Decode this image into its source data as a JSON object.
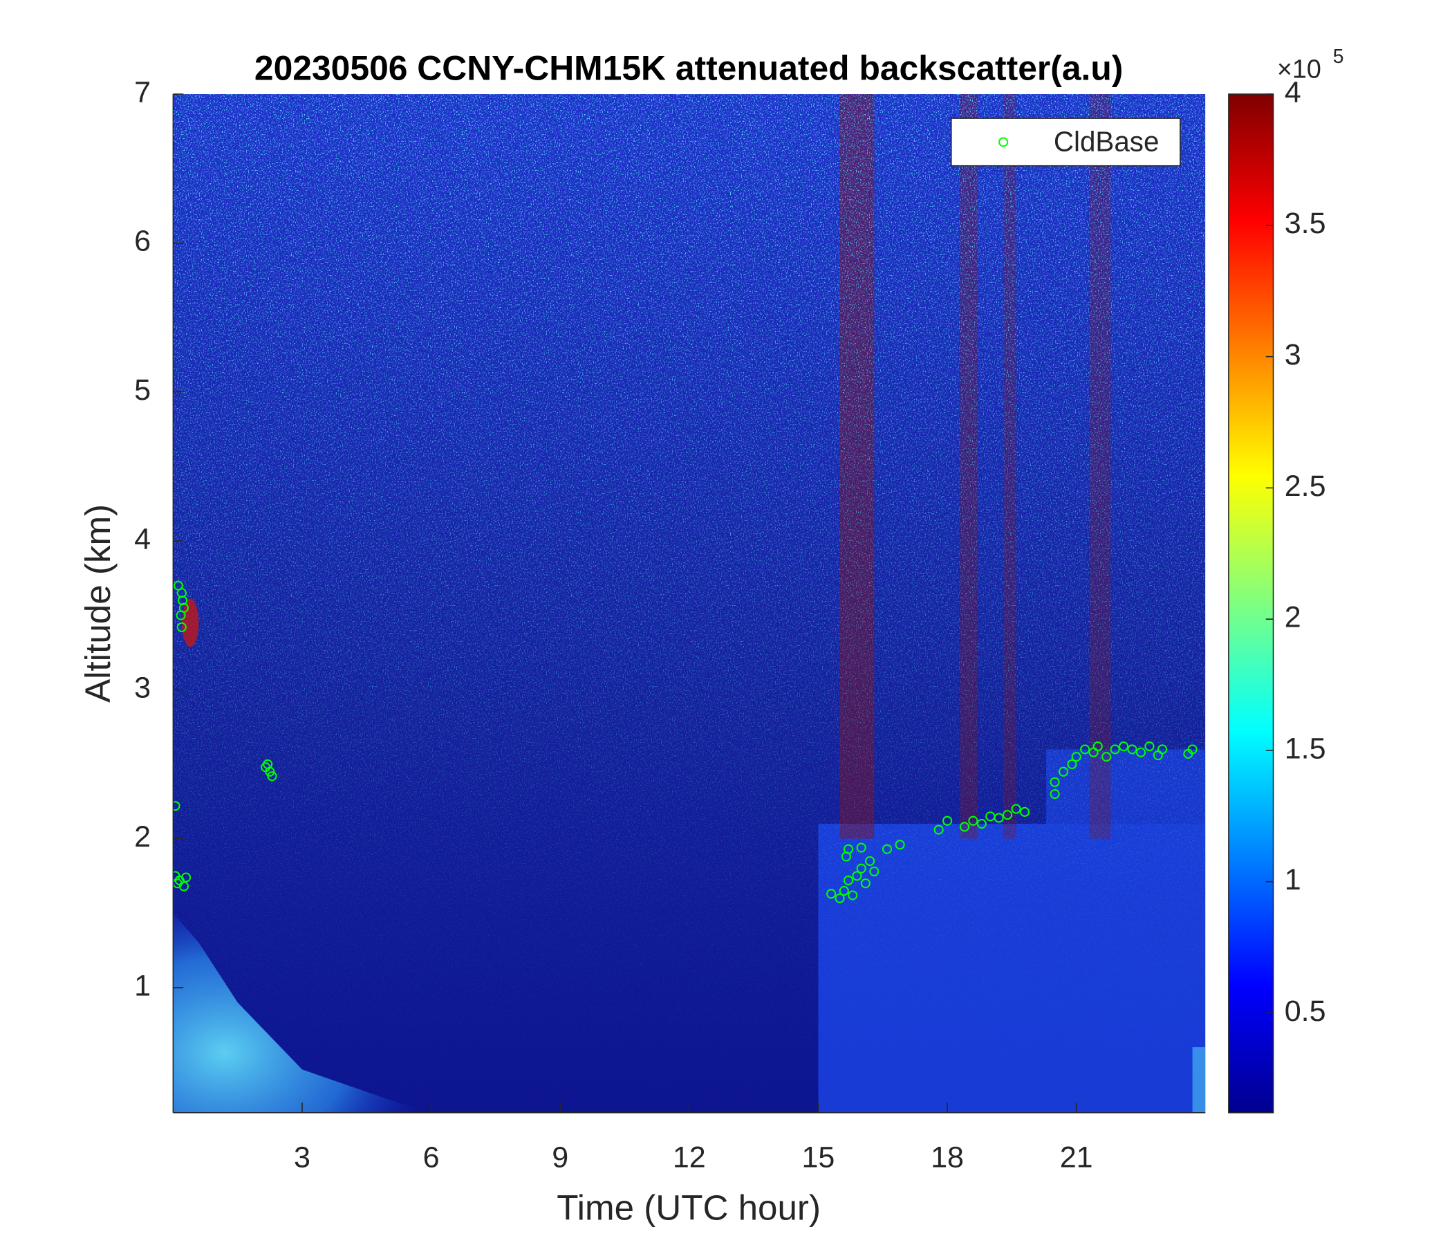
{
  "chart_data": {
    "type": "heatmap",
    "title": "20230506 CCNY-CHM15K attenuated backscatter(a.u)",
    "xlabel": "Time (UTC hour)",
    "ylabel": "Altitude (km)",
    "xlim": [
      0,
      24
    ],
    "xticks": [
      3,
      6,
      9,
      12,
      15,
      18,
      21
    ],
    "ylim": [
      0.16,
      7
    ],
    "yticks": [
      1,
      2,
      3,
      4,
      5,
      6,
      7
    ],
    "colormap": "jet",
    "colorbar": {
      "clim": [
        0.12,
        4
      ],
      "ticks": [
        0.5,
        1,
        1.5,
        2,
        2.5,
        3,
        3.5,
        4
      ],
      "multiplier": "×10",
      "exponent": "5"
    },
    "legend": "top-right",
    "overlay": {
      "type": "scatter",
      "name": "CldBase",
      "color": "#00ff00",
      "x": [
        0.05,
        0.1,
        0.15,
        0.25,
        0.3,
        0.05,
        0.12,
        0.2,
        0.25,
        0.18,
        0.2,
        0.22,
        2.2,
        2.25,
        2.3,
        2.15,
        15.3,
        15.5,
        15.6,
        15.7,
        15.8,
        15.9,
        16.0,
        16.1,
        16.2,
        16.3,
        15.65,
        15.7,
        16.0,
        16.6,
        16.9,
        17.8,
        18.0,
        18.4,
        18.6,
        18.8,
        19.0,
        19.2,
        19.4,
        19.6,
        19.8,
        20.5,
        20.5,
        20.7,
        20.9,
        21.0,
        21.2,
        21.4,
        21.5,
        21.7,
        21.9,
        22.1,
        22.3,
        22.5,
        22.7,
        22.9,
        23.0,
        23.6,
        23.7
      ],
      "y": [
        1.75,
        1.7,
        1.72,
        1.68,
        1.74,
        2.22,
        3.7,
        3.65,
        3.55,
        3.5,
        3.42,
        3.6,
        2.5,
        2.45,
        2.42,
        2.48,
        1.63,
        1.6,
        1.65,
        1.72,
        1.62,
        1.75,
        1.8,
        1.7,
        1.85,
        1.78,
        1.88,
        1.93,
        1.94,
        1.93,
        1.96,
        2.06,
        2.12,
        2.08,
        2.12,
        2.1,
        2.15,
        2.14,
        2.16,
        2.2,
        2.18,
        2.3,
        2.38,
        2.45,
        2.5,
        2.55,
        2.6,
        2.58,
        2.62,
        2.55,
        2.6,
        2.62,
        2.6,
        2.58,
        2.62,
        2.56,
        2.6,
        2.57,
        2.6
      ]
    }
  }
}
